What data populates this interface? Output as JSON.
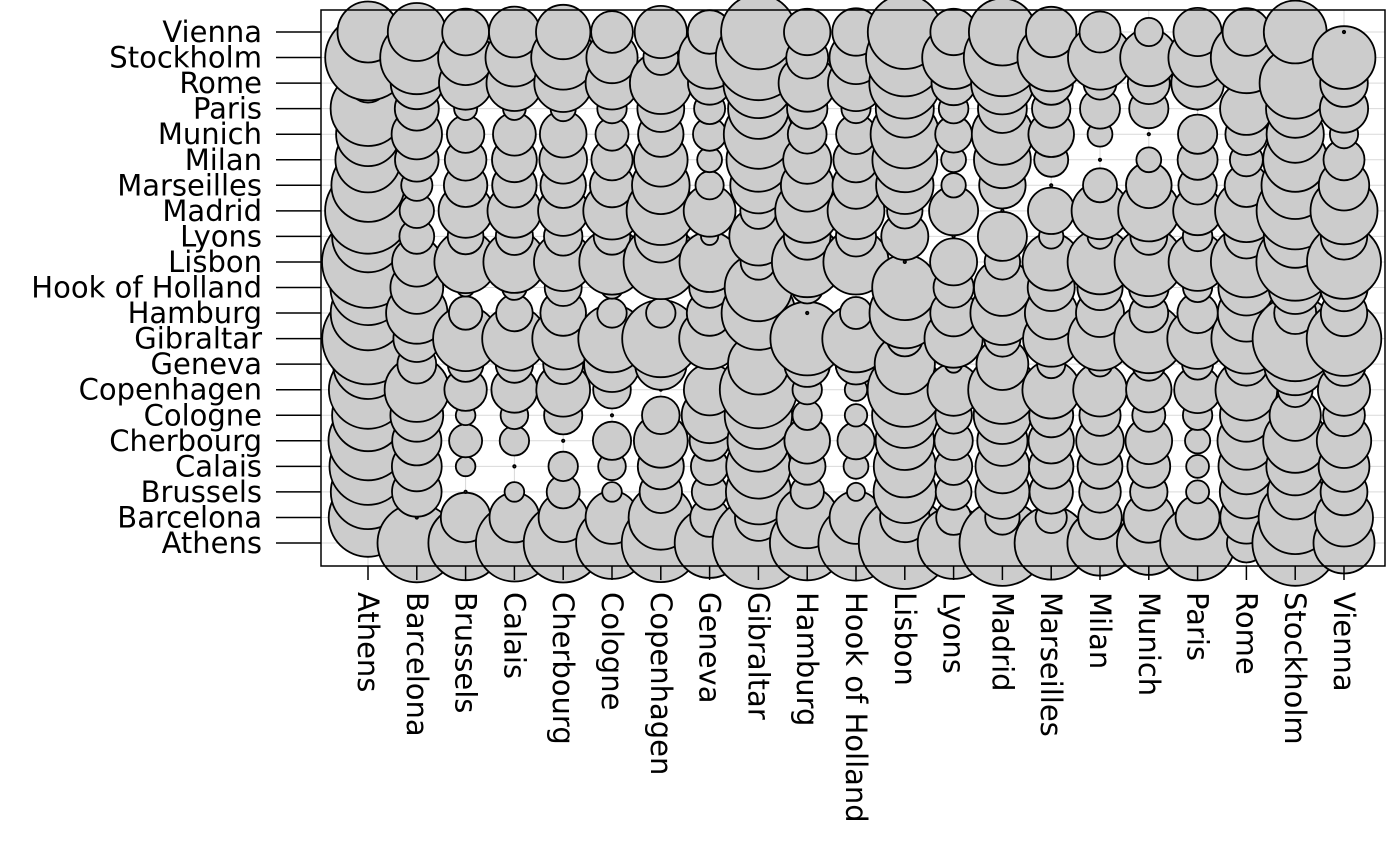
{
  "chart_data": {
    "type": "scatter",
    "subtype": "bubble-matrix",
    "title": "",
    "xlabel": "",
    "ylabel": "",
    "grid": true,
    "bubble_fill": "#cccccc",
    "bubble_stroke": "#000000",
    "cities": [
      "Athens",
      "Barcelona",
      "Brussels",
      "Calais",
      "Cherbourg",
      "Cologne",
      "Copenhagen",
      "Geneva",
      "Gibraltar",
      "Hamburg",
      "Hook of Holland",
      "Lisbon",
      "Lyons",
      "Madrid",
      "Marseilles",
      "Milan",
      "Munich",
      "Paris",
      "Rome",
      "Stockholm",
      "Vienna"
    ],
    "x_categories": [
      "Athens",
      "Barcelona",
      "Brussels",
      "Calais",
      "Cherbourg",
      "Cologne",
      "Copenhagen",
      "Geneva",
      "Gibraltar",
      "Hamburg",
      "Hook of Holland",
      "Lisbon",
      "Lyons",
      "Madrid",
      "Marseilles",
      "Milan",
      "Munich",
      "Paris",
      "Rome",
      "Stockholm",
      "Vienna"
    ],
    "y_categories": [
      "Athens",
      "Barcelona",
      "Brussels",
      "Calais",
      "Cherbourg",
      "Cologne",
      "Copenhagen",
      "Geneva",
      "Gibraltar",
      "Hamburg",
      "Hook of Holland",
      "Lisbon",
      "Lyons",
      "Madrid",
      "Marseilles",
      "Milan",
      "Munich",
      "Paris",
      "Rome",
      "Stockholm",
      "Vienna"
    ],
    "value_description": "Bubble area proportional to road distance between the two cities (eurodist)",
    "values": [
      [
        0,
        3313,
        2963,
        3175,
        3339,
        2762,
        3276,
        2610,
        4485,
        2977,
        3030,
        4532,
        2753,
        3949,
        2865,
        2282,
        2179,
        3000,
        817,
        3927,
        1991
      ],
      [
        3313,
        0,
        1318,
        1326,
        1294,
        1498,
        2218,
        803,
        1172,
        2018,
        1490,
        1305,
        645,
        636,
        521,
        1014,
        1365,
        1033,
        1460,
        2868,
        1802
      ],
      [
        2963,
        1318,
        0,
        204,
        583,
        206,
        966,
        677,
        2256,
        597,
        172,
        2084,
        690,
        1558,
        1011,
        925,
        747,
        285,
        1511,
        1616,
        1175
      ],
      [
        3175,
        1326,
        204,
        0,
        460,
        409,
        1136,
        747,
        2224,
        714,
        330,
        2052,
        739,
        1550,
        1059,
        1077,
        977,
        280,
        1662,
        1786,
        1381
      ],
      [
        3339,
        1294,
        583,
        460,
        0,
        785,
        1545,
        853,
        2047,
        1115,
        731,
        1827,
        789,
        1347,
        1101,
        1209,
        1160,
        340,
        1794,
        2196,
        1588
      ],
      [
        2762,
        1498,
        206,
        409,
        785,
        0,
        760,
        1662,
        2436,
        460,
        269,
        2290,
        714,
        1764,
        1035,
        911,
        583,
        465,
        1497,
        1403,
        937
      ],
      [
        3276,
        2218,
        966,
        1136,
        1545,
        760,
        0,
        1418,
        3196,
        460,
        269,
        2971,
        1458,
        2498,
        1778,
        1537,
        1104,
        1176,
        2050,
        650,
        1455
      ],
      [
        2610,
        803,
        677,
        747,
        853,
        1662,
        1418,
        0,
        1975,
        1118,
        895,
        1936,
        158,
        1439,
        425,
        328,
        591,
        513,
        995,
        2068,
        1019
      ],
      [
        4485,
        1172,
        2256,
        2224,
        2047,
        2436,
        3196,
        1975,
        0,
        2897,
        2428,
        676,
        1817,
        698,
        1693,
        2185,
        2565,
        1971,
        2631,
        3886,
        2974
      ],
      [
        2977,
        2018,
        597,
        714,
        1115,
        460,
        460,
        1118,
        2897,
        0,
        550,
        2671,
        1159,
        2198,
        1479,
        1238,
        805,
        877,
        1751,
        949,
        1155
      ],
      [
        3030,
        1490,
        172,
        330,
        731,
        269,
        269,
        895,
        2428,
        550,
        0,
        2280,
        863,
        1730,
        1183,
        1098,
        851,
        457,
        1683,
        1500,
        1205
      ],
      [
        4532,
        1305,
        2084,
        2052,
        1827,
        2290,
        2971,
        1936,
        676,
        2671,
        2280,
        0,
        1178,
        668,
        1762,
        2250,
        2507,
        1799,
        2700,
        3231,
        2937
      ],
      [
        2753,
        645,
        690,
        739,
        789,
        714,
        1458,
        158,
        1817,
        1159,
        863,
        1178,
        0,
        1281,
        320,
        328,
        724,
        471,
        1048,
        2108,
        1157
      ],
      [
        3949,
        636,
        1558,
        1550,
        1347,
        1764,
        2498,
        1439,
        698,
        2198,
        1730,
        668,
        1281,
        0,
        1157,
        1724,
        2010,
        1273,
        2097,
        3188,
        2409
      ],
      [
        2865,
        521,
        1011,
        1059,
        1101,
        1035,
        1778,
        425,
        1693,
        1479,
        1183,
        1762,
        320,
        1157,
        0,
        618,
        1109,
        792,
        1011,
        2428,
        1363
      ],
      [
        2282,
        1014,
        925,
        1077,
        1209,
        911,
        1537,
        328,
        2185,
        1238,
        1098,
        2250,
        328,
        1724,
        618,
        0,
        331,
        856,
        586,
        2187,
        898
      ],
      [
        2179,
        1365,
        747,
        977,
        1160,
        583,
        1104,
        591,
        2565,
        805,
        851,
        2507,
        724,
        2010,
        1109,
        331,
        0,
        821,
        946,
        1754,
        428
      ],
      [
        3000,
        1033,
        285,
        280,
        340,
        465,
        1176,
        513,
        1971,
        877,
        457,
        1799,
        471,
        1273,
        792,
        856,
        821,
        0,
        1476,
        1827,
        1249
      ],
      [
        817,
        1460,
        1511,
        1662,
        1794,
        1497,
        2050,
        995,
        2631,
        1751,
        1683,
        2700,
        1048,
        2097,
        1011,
        586,
        946,
        1476,
        0,
        2707,
        1209
      ],
      [
        3927,
        2868,
        1616,
        1786,
        2196,
        1403,
        650,
        2068,
        3886,
        949,
        1500,
        3231,
        2108,
        3188,
        2428,
        2187,
        1754,
        1827,
        2707,
        0,
        2105
      ],
      [
        1991,
        1802,
        1175,
        1381,
        1588,
        937,
        1455,
        1019,
        2974,
        1155,
        1205,
        2937,
        1157,
        2409,
        1363,
        898,
        428,
        1249,
        1209,
        2105,
        0
      ]
    ]
  }
}
